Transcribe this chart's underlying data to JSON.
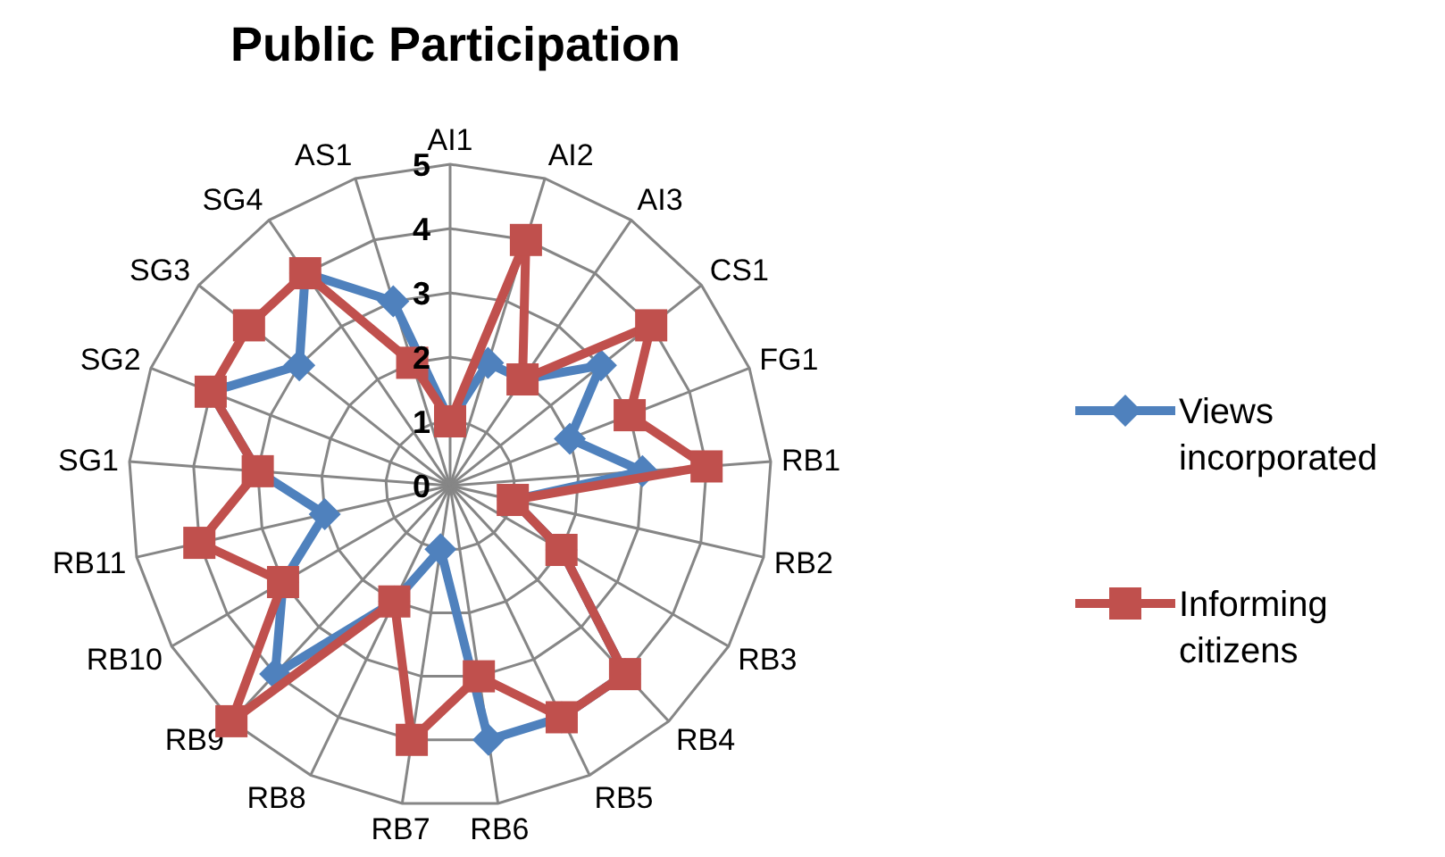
{
  "chart_data": {
    "type": "radar",
    "title": "Public Participation",
    "categories": [
      "AI1",
      "AI2",
      "AI3",
      "CS1",
      "FG1",
      "RB1",
      "RB2",
      "RB3",
      "RB4",
      "RB5",
      "RB6",
      "RB7",
      "RB8",
      "RB9",
      "RB10",
      "RB11",
      "SG1",
      "SG2",
      "SG3",
      "SG4",
      "AS1"
    ],
    "series": [
      {
        "name": "Views incorporated",
        "color": "#4f81bd",
        "marker": "diamond",
        "values": [
          1,
          2,
          2,
          3,
          2,
          3,
          1,
          2,
          4,
          4,
          4,
          1,
          2,
          4,
          3,
          2,
          3,
          4,
          3,
          4,
          3
        ]
      },
      {
        "name": "Informing citizens",
        "color": "#c0504d",
        "marker": "square",
        "values": [
          1,
          4,
          2,
          4,
          3,
          4,
          1,
          2,
          4,
          4,
          3,
          4,
          2,
          5,
          3,
          4,
          3,
          4,
          4,
          4,
          2
        ]
      }
    ],
    "ylim": [
      0,
      5
    ],
    "yticks": [
      0,
      1,
      2,
      3,
      4,
      5
    ],
    "grid": true,
    "legend": "right"
  }
}
